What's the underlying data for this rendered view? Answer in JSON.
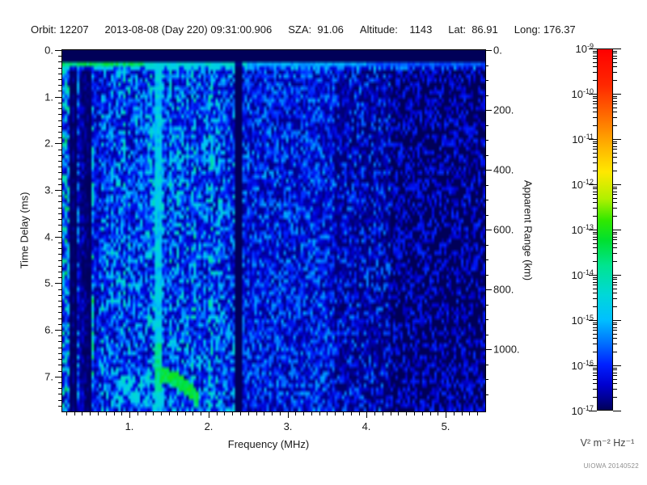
{
  "header": {
    "segments": [
      "Orbit: 12207",
      "2013-08-08 (Day 220) 09:31:00.906",
      "SZA:  91.06",
      "Altitude:    1143",
      "Lat:  86.91",
      "Long: 176.37"
    ]
  },
  "chart_data": {
    "type": "heatmap",
    "subtype": "radar-sounder-ionogram-spectrogram",
    "description": "Spectral density vs sounding frequency and time delay; blue/cyan noise speckle with echo features on black background",
    "x_axis": {
      "label": "Frequency (MHz)",
      "range": [
        0.15,
        5.5
      ],
      "major_ticks": [
        1,
        2,
        3,
        4,
        5
      ],
      "major_tick_labels": [
        "1.",
        "2.",
        "3.",
        "4.",
        "5."
      ],
      "minor_tick_step": 0.1
    },
    "y_axis_left": {
      "label": "Time Delay (ms)",
      "range": [
        0,
        7.75
      ],
      "major_ticks": [
        0,
        1,
        2,
        3,
        4,
        5,
        6,
        7
      ],
      "major_tick_labels": [
        "0.",
        "1.",
        "2.",
        "3.",
        "4.",
        "5.",
        "6.",
        "7."
      ],
      "minor_tick_step": 0.125
    },
    "y_axis_right": {
      "label": "Apparent Range (km)",
      "range": [
        0,
        1208
      ],
      "major_ticks": [
        0,
        200,
        400,
        600,
        800,
        1000
      ],
      "major_tick_labels": [
        "0.",
        "200.",
        "400.",
        "600.",
        "800.",
        "1000."
      ],
      "minor_tick_step": 50
    },
    "colorbar": {
      "scale": "log",
      "max": "1e-9",
      "min": "1e-17",
      "tick_exponents": [
        "-9",
        "-10",
        "-11",
        "-12",
        "-13",
        "-14",
        "-15",
        "-16",
        "-17"
      ],
      "unit_label": "V² m⁻² Hz⁻¹",
      "gradient_stops": [
        [
          0.0,
          "#ff0000"
        ],
        [
          0.1,
          "#ff2800"
        ],
        [
          0.19,
          "#ff7000"
        ],
        [
          0.27,
          "#ffb400"
        ],
        [
          0.34,
          "#ffe800"
        ],
        [
          0.415,
          "#b0f000"
        ],
        [
          0.475,
          "#30e800"
        ],
        [
          0.53,
          "#00e030"
        ],
        [
          0.6,
          "#00e490"
        ],
        [
          0.68,
          "#00d8d8"
        ],
        [
          0.75,
          "#00c0ff"
        ],
        [
          0.815,
          "#0070ff"
        ],
        [
          0.875,
          "#0020ff"
        ],
        [
          0.93,
          "#0000d0"
        ],
        [
          0.97,
          "#000090"
        ],
        [
          1.0,
          "#000058"
        ]
      ]
    },
    "noise_regions": [
      {
        "f": [
          0.15,
          2.33
        ],
        "v0": 0.03,
        "gain": 0.3,
        "pow": 1.5
      },
      {
        "f": [
          2.33,
          2.43
        ],
        "v0": 0.0,
        "gain": 0.005,
        "pow": 1.0
      },
      {
        "f": [
          2.43,
          3.6
        ],
        "v0": 0.02,
        "gain": 0.22,
        "pow": 1.6
      },
      {
        "f": [
          3.6,
          4.3
        ],
        "v0": 0.01,
        "gain": 0.2,
        "pow": 1.8,
        "dropout": 0.25,
        "drop_mul": 0.2
      },
      {
        "f": [
          4.3,
          5.5
        ],
        "v0": 0.04,
        "gain": 0.1,
        "pow": 1.0,
        "dropout": 0.55,
        "drop_mul": 0.0
      }
    ],
    "features": [
      {
        "name": "transmit-blanking",
        "delay_ms": [
          0,
          0.27
        ],
        "description": "solid black band at top of plot"
      },
      {
        "name": "first-echo-line",
        "delay_ms": [
          0.26,
          0.43
        ],
        "description": "bright horizontal line at ~0.3 ms, green-cyan at low frequency fading to blue at high frequency"
      },
      {
        "name": "vertical-stripes",
        "freq_mhz": [
          0.15,
          0.65
        ],
        "description": "fine vertical interference striping at lowest frequencies"
      },
      {
        "name": "dark-lane-a",
        "freq_mhz": [
          0.24,
          0.33
        ],
        "description": "dark vertical lane"
      },
      {
        "name": "dark-lane-b",
        "freq_mhz": [
          0.39,
          0.52
        ],
        "description": "dark vertical lane"
      },
      {
        "name": "bright-line",
        "freq_mhz": [
          1.33,
          1.41
        ],
        "description": "bright cyan vertical line at ~1.35 MHz"
      },
      {
        "name": "black-band",
        "freq_mhz": [
          2.33,
          2.43
        ],
        "description": "black vertical band at ~2.35 MHz"
      },
      {
        "name": "echo-arc",
        "freq_mhz": [
          1.38,
          1.87
        ],
        "delay_ms": [
          6.98,
          7.5
        ],
        "description": "green ionospheric echo arc curving down-right near 7 ms"
      },
      {
        "name": "echo-patch",
        "freq_mhz": [
          0.85,
          1.27
        ],
        "delay_ms": [
          6.95,
          7.55
        ],
        "description": "cyan echo patch near 7.2 ms"
      }
    ]
  },
  "footer": {
    "credit": "UIOWA 20140522"
  }
}
